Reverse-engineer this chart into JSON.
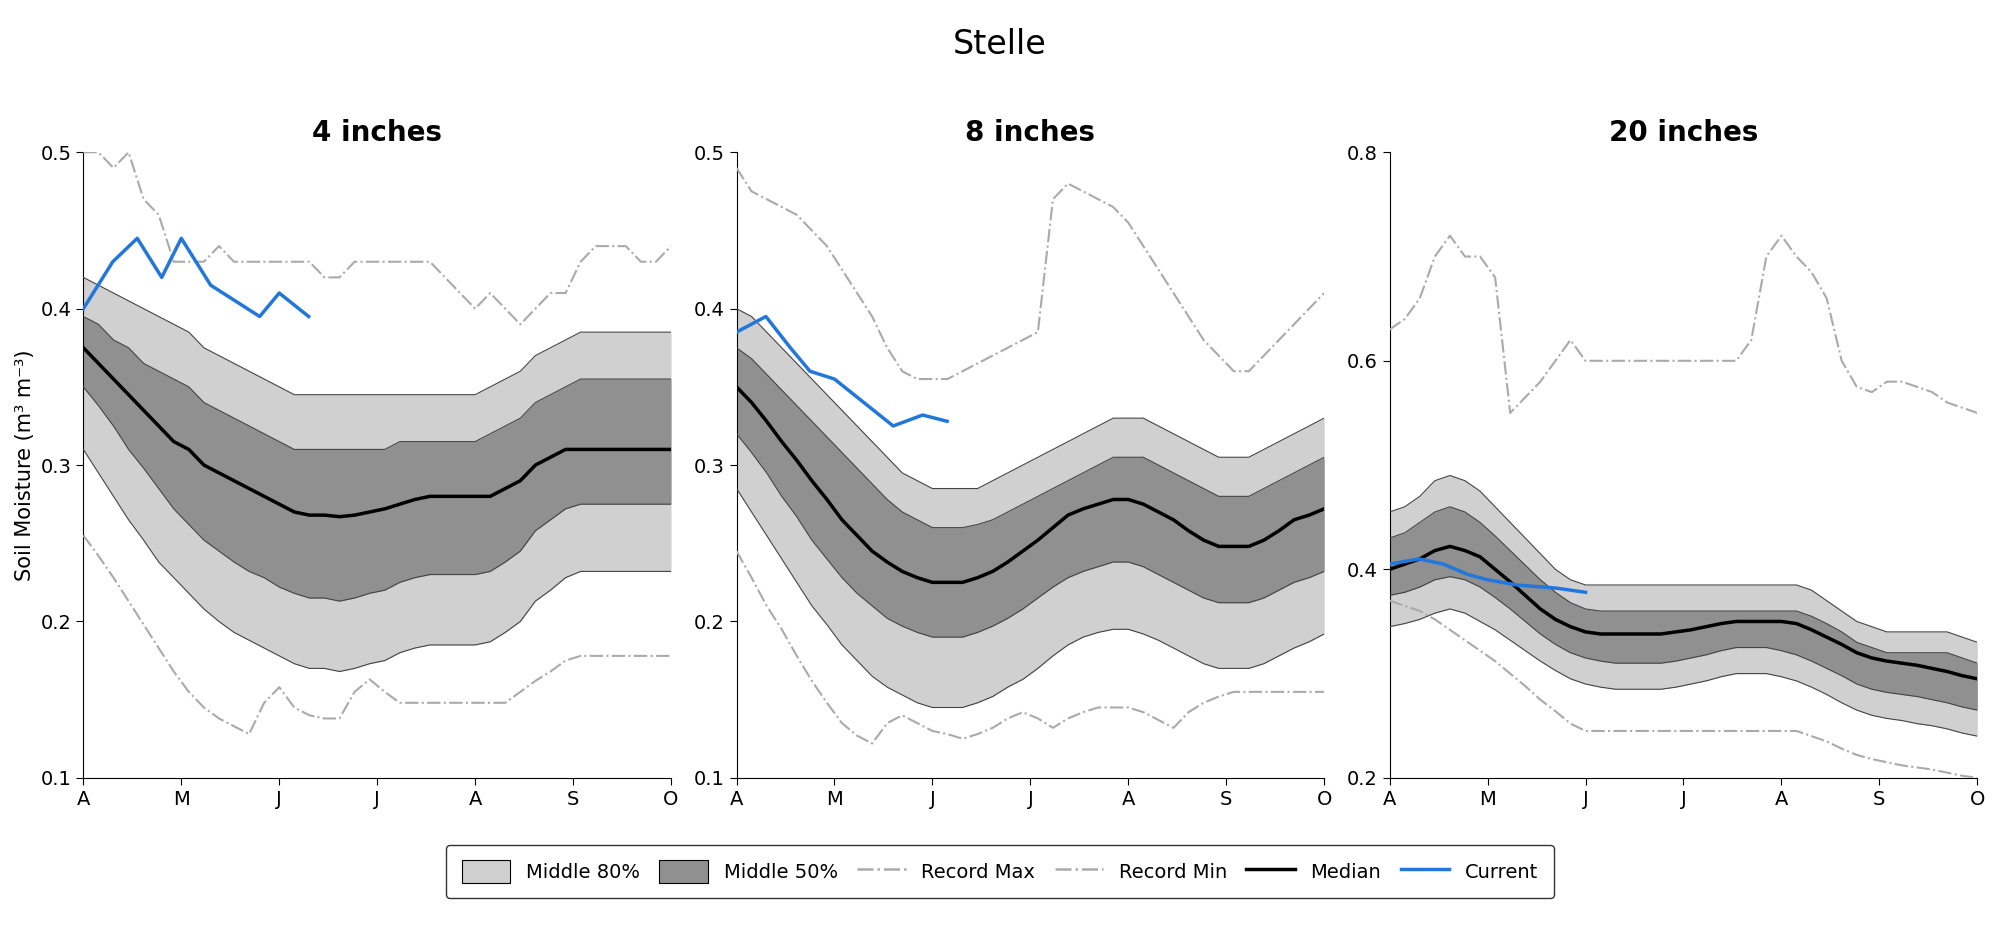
{
  "title": "Stelle",
  "panels": [
    "4 inches",
    "8 inches",
    "20 inches"
  ],
  "x_labels": [
    "A",
    "M",
    "J",
    "J",
    "A",
    "S",
    "O"
  ],
  "ylabel": "Soil Moisture (m³ m⁻³)",
  "panel1": {
    "ylim": [
      0.1,
      0.5
    ],
    "yticks": [
      0.1,
      0.2,
      0.3,
      0.4,
      0.5
    ],
    "record_max": [
      0.5,
      0.5,
      0.49,
      0.5,
      0.47,
      0.46,
      0.43,
      0.43,
      0.43,
      0.44,
      0.43,
      0.43,
      0.43,
      0.43,
      0.43,
      0.43,
      0.42,
      0.42,
      0.43,
      0.43,
      0.43,
      0.43,
      0.43,
      0.43,
      0.42,
      0.41,
      0.4,
      0.41,
      0.4,
      0.39,
      0.4,
      0.41,
      0.41,
      0.43,
      0.44,
      0.44,
      0.44,
      0.43,
      0.43,
      0.44
    ],
    "p90": [
      0.42,
      0.415,
      0.41,
      0.405,
      0.4,
      0.395,
      0.39,
      0.385,
      0.375,
      0.37,
      0.365,
      0.36,
      0.355,
      0.35,
      0.345,
      0.345,
      0.345,
      0.345,
      0.345,
      0.345,
      0.345,
      0.345,
      0.345,
      0.345,
      0.345,
      0.345,
      0.345,
      0.35,
      0.355,
      0.36,
      0.37,
      0.375,
      0.38,
      0.385,
      0.385,
      0.385,
      0.385,
      0.385,
      0.385,
      0.385
    ],
    "p75": [
      0.395,
      0.39,
      0.38,
      0.375,
      0.365,
      0.36,
      0.355,
      0.35,
      0.34,
      0.335,
      0.33,
      0.325,
      0.32,
      0.315,
      0.31,
      0.31,
      0.31,
      0.31,
      0.31,
      0.31,
      0.31,
      0.315,
      0.315,
      0.315,
      0.315,
      0.315,
      0.315,
      0.32,
      0.325,
      0.33,
      0.34,
      0.345,
      0.35,
      0.355,
      0.355,
      0.355,
      0.355,
      0.355,
      0.355,
      0.355
    ],
    "median": [
      0.375,
      0.365,
      0.355,
      0.345,
      0.335,
      0.325,
      0.315,
      0.31,
      0.3,
      0.295,
      0.29,
      0.285,
      0.28,
      0.275,
      0.27,
      0.268,
      0.268,
      0.267,
      0.268,
      0.27,
      0.272,
      0.275,
      0.278,
      0.28,
      0.28,
      0.28,
      0.28,
      0.28,
      0.285,
      0.29,
      0.3,
      0.305,
      0.31,
      0.31,
      0.31,
      0.31,
      0.31,
      0.31,
      0.31,
      0.31
    ],
    "p25": [
      0.35,
      0.338,
      0.325,
      0.31,
      0.298,
      0.285,
      0.272,
      0.262,
      0.252,
      0.245,
      0.238,
      0.232,
      0.228,
      0.222,
      0.218,
      0.215,
      0.215,
      0.213,
      0.215,
      0.218,
      0.22,
      0.225,
      0.228,
      0.23,
      0.23,
      0.23,
      0.23,
      0.232,
      0.238,
      0.245,
      0.258,
      0.265,
      0.272,
      0.275,
      0.275,
      0.275,
      0.275,
      0.275,
      0.275,
      0.275
    ],
    "p10": [
      0.31,
      0.295,
      0.28,
      0.265,
      0.252,
      0.238,
      0.228,
      0.218,
      0.208,
      0.2,
      0.193,
      0.188,
      0.183,
      0.178,
      0.173,
      0.17,
      0.17,
      0.168,
      0.17,
      0.173,
      0.175,
      0.18,
      0.183,
      0.185,
      0.185,
      0.185,
      0.185,
      0.187,
      0.193,
      0.2,
      0.213,
      0.22,
      0.228,
      0.232,
      0.232,
      0.232,
      0.232,
      0.232,
      0.232,
      0.232
    ],
    "record_min": [
      0.255,
      0.242,
      0.228,
      0.213,
      0.198,
      0.183,
      0.168,
      0.155,
      0.145,
      0.138,
      0.133,
      0.128,
      0.148,
      0.158,
      0.145,
      0.14,
      0.138,
      0.138,
      0.155,
      0.163,
      0.155,
      0.148,
      0.148,
      0.148,
      0.148,
      0.148,
      0.148,
      0.148,
      0.148,
      0.155,
      0.162,
      0.168,
      0.175,
      0.178,
      0.178,
      0.178,
      0.178,
      0.178,
      0.178,
      0.178
    ],
    "current_x": [
      0.0,
      0.3,
      0.55,
      0.8,
      1.0,
      1.3,
      1.55,
      1.8,
      2.0,
      2.3
    ],
    "current_y": [
      0.4,
      0.43,
      0.445,
      0.42,
      0.445,
      0.415,
      0.405,
      0.395,
      0.41,
      0.395
    ]
  },
  "panel2": {
    "ylim": [
      0.1,
      0.5
    ],
    "yticks": [
      0.1,
      0.2,
      0.3,
      0.4,
      0.5
    ],
    "record_max": [
      0.49,
      0.475,
      0.47,
      0.465,
      0.46,
      0.45,
      0.44,
      0.425,
      0.41,
      0.395,
      0.375,
      0.36,
      0.355,
      0.355,
      0.355,
      0.36,
      0.365,
      0.37,
      0.375,
      0.38,
      0.385,
      0.47,
      0.48,
      0.475,
      0.47,
      0.465,
      0.455,
      0.44,
      0.425,
      0.41,
      0.395,
      0.38,
      0.37,
      0.36,
      0.36,
      0.37,
      0.38,
      0.39,
      0.4,
      0.41
    ],
    "p90": [
      0.4,
      0.395,
      0.385,
      0.375,
      0.365,
      0.355,
      0.345,
      0.335,
      0.325,
      0.315,
      0.305,
      0.295,
      0.29,
      0.285,
      0.285,
      0.285,
      0.285,
      0.29,
      0.295,
      0.3,
      0.305,
      0.31,
      0.315,
      0.32,
      0.325,
      0.33,
      0.33,
      0.33,
      0.325,
      0.32,
      0.315,
      0.31,
      0.305,
      0.305,
      0.305,
      0.31,
      0.315,
      0.32,
      0.325,
      0.33
    ],
    "p75": [
      0.375,
      0.368,
      0.358,
      0.348,
      0.338,
      0.328,
      0.318,
      0.308,
      0.298,
      0.288,
      0.278,
      0.27,
      0.265,
      0.26,
      0.26,
      0.26,
      0.262,
      0.265,
      0.27,
      0.275,
      0.28,
      0.285,
      0.29,
      0.295,
      0.3,
      0.305,
      0.305,
      0.305,
      0.3,
      0.295,
      0.29,
      0.285,
      0.28,
      0.28,
      0.28,
      0.285,
      0.29,
      0.295,
      0.3,
      0.305
    ],
    "median": [
      0.35,
      0.34,
      0.328,
      0.315,
      0.303,
      0.29,
      0.278,
      0.265,
      0.255,
      0.245,
      0.238,
      0.232,
      0.228,
      0.225,
      0.225,
      0.225,
      0.228,
      0.232,
      0.238,
      0.245,
      0.252,
      0.26,
      0.268,
      0.272,
      0.275,
      0.278,
      0.278,
      0.275,
      0.27,
      0.265,
      0.258,
      0.252,
      0.248,
      0.248,
      0.248,
      0.252,
      0.258,
      0.265,
      0.268,
      0.272
    ],
    "p25": [
      0.32,
      0.308,
      0.295,
      0.28,
      0.267,
      0.252,
      0.24,
      0.228,
      0.218,
      0.21,
      0.202,
      0.197,
      0.193,
      0.19,
      0.19,
      0.19,
      0.193,
      0.197,
      0.202,
      0.208,
      0.215,
      0.222,
      0.228,
      0.232,
      0.235,
      0.238,
      0.238,
      0.235,
      0.23,
      0.225,
      0.22,
      0.215,
      0.212,
      0.212,
      0.212,
      0.215,
      0.22,
      0.225,
      0.228,
      0.232
    ],
    "p10": [
      0.285,
      0.27,
      0.255,
      0.24,
      0.225,
      0.21,
      0.198,
      0.185,
      0.175,
      0.165,
      0.158,
      0.153,
      0.148,
      0.145,
      0.145,
      0.145,
      0.148,
      0.152,
      0.158,
      0.163,
      0.17,
      0.178,
      0.185,
      0.19,
      0.193,
      0.195,
      0.195,
      0.192,
      0.188,
      0.183,
      0.178,
      0.173,
      0.17,
      0.17,
      0.17,
      0.173,
      0.178,
      0.183,
      0.187,
      0.192
    ],
    "record_min": [
      0.245,
      0.228,
      0.21,
      0.195,
      0.178,
      0.162,
      0.148,
      0.135,
      0.127,
      0.122,
      0.135,
      0.14,
      0.135,
      0.13,
      0.128,
      0.125,
      0.128,
      0.132,
      0.138,
      0.142,
      0.138,
      0.132,
      0.138,
      0.142,
      0.145,
      0.145,
      0.145,
      0.142,
      0.137,
      0.132,
      0.142,
      0.148,
      0.152,
      0.155,
      0.155,
      0.155,
      0.155,
      0.155,
      0.155,
      0.155
    ],
    "current_x": [
      0.0,
      0.3,
      0.55,
      0.75,
      1.0,
      1.3,
      1.6,
      1.9,
      2.15
    ],
    "current_y": [
      0.385,
      0.395,
      0.375,
      0.36,
      0.355,
      0.34,
      0.325,
      0.332,
      0.328
    ]
  },
  "panel3": {
    "ylim": [
      0.2,
      0.8
    ],
    "yticks": [
      0.2,
      0.4,
      0.6,
      0.8
    ],
    "record_max": [
      0.63,
      0.64,
      0.66,
      0.7,
      0.72,
      0.7,
      0.7,
      0.68,
      0.55,
      0.565,
      0.58,
      0.6,
      0.62,
      0.6,
      0.6,
      0.6,
      0.6,
      0.6,
      0.6,
      0.6,
      0.6,
      0.6,
      0.6,
      0.6,
      0.62,
      0.7,
      0.72,
      0.7,
      0.685,
      0.66,
      0.6,
      0.575,
      0.57,
      0.58,
      0.58,
      0.575,
      0.57,
      0.56,
      0.555,
      0.55
    ],
    "p90": [
      0.455,
      0.46,
      0.47,
      0.485,
      0.49,
      0.485,
      0.475,
      0.46,
      0.445,
      0.43,
      0.415,
      0.4,
      0.39,
      0.385,
      0.385,
      0.385,
      0.385,
      0.385,
      0.385,
      0.385,
      0.385,
      0.385,
      0.385,
      0.385,
      0.385,
      0.385,
      0.385,
      0.385,
      0.38,
      0.37,
      0.36,
      0.35,
      0.345,
      0.34,
      0.34,
      0.34,
      0.34,
      0.34,
      0.335,
      0.33
    ],
    "p75": [
      0.43,
      0.435,
      0.445,
      0.455,
      0.46,
      0.455,
      0.445,
      0.432,
      0.418,
      0.404,
      0.39,
      0.378,
      0.368,
      0.362,
      0.36,
      0.36,
      0.36,
      0.36,
      0.36,
      0.36,
      0.36,
      0.36,
      0.36,
      0.36,
      0.36,
      0.36,
      0.36,
      0.36,
      0.355,
      0.348,
      0.34,
      0.33,
      0.325,
      0.32,
      0.32,
      0.32,
      0.32,
      0.32,
      0.315,
      0.31
    ],
    "median": [
      0.4,
      0.405,
      0.41,
      0.418,
      0.422,
      0.418,
      0.412,
      0.4,
      0.388,
      0.375,
      0.362,
      0.352,
      0.345,
      0.34,
      0.338,
      0.338,
      0.338,
      0.338,
      0.338,
      0.34,
      0.342,
      0.345,
      0.348,
      0.35,
      0.35,
      0.35,
      0.35,
      0.348,
      0.342,
      0.335,
      0.328,
      0.32,
      0.315,
      0.312,
      0.31,
      0.308,
      0.305,
      0.302,
      0.298,
      0.295
    ],
    "p25": [
      0.375,
      0.378,
      0.383,
      0.39,
      0.393,
      0.39,
      0.383,
      0.373,
      0.362,
      0.35,
      0.338,
      0.328,
      0.32,
      0.315,
      0.312,
      0.31,
      0.31,
      0.31,
      0.31,
      0.312,
      0.315,
      0.318,
      0.322,
      0.325,
      0.325,
      0.325,
      0.322,
      0.318,
      0.312,
      0.305,
      0.298,
      0.29,
      0.285,
      0.282,
      0.28,
      0.278,
      0.275,
      0.272,
      0.268,
      0.265
    ],
    "p10": [
      0.345,
      0.348,
      0.352,
      0.358,
      0.362,
      0.358,
      0.35,
      0.342,
      0.332,
      0.322,
      0.312,
      0.303,
      0.295,
      0.29,
      0.287,
      0.285,
      0.285,
      0.285,
      0.285,
      0.287,
      0.29,
      0.293,
      0.297,
      0.3,
      0.3,
      0.3,
      0.297,
      0.293,
      0.287,
      0.28,
      0.272,
      0.265,
      0.26,
      0.257,
      0.255,
      0.252,
      0.25,
      0.247,
      0.243,
      0.24
    ],
    "record_min": [
      0.37,
      0.365,
      0.36,
      0.352,
      0.342,
      0.332,
      0.322,
      0.312,
      0.3,
      0.288,
      0.275,
      0.264,
      0.252,
      0.245,
      0.245,
      0.245,
      0.245,
      0.245,
      0.245,
      0.245,
      0.245,
      0.245,
      0.245,
      0.245,
      0.245,
      0.245,
      0.245,
      0.245,
      0.24,
      0.235,
      0.228,
      0.222,
      0.218,
      0.215,
      0.212,
      0.21,
      0.208,
      0.205,
      0.202,
      0.2
    ],
    "current_x": [
      0.0,
      0.3,
      0.55,
      0.8,
      1.0,
      1.3,
      1.7,
      2.0
    ],
    "current_y": [
      0.405,
      0.41,
      0.405,
      0.395,
      0.39,
      0.385,
      0.382,
      0.378
    ]
  },
  "color_80pct": "#d0d0d0",
  "color_50pct": "#909090",
  "color_median": "#000000",
  "color_record": "#aaaaaa",
  "color_current": "#2277dd",
  "n_points": 40
}
